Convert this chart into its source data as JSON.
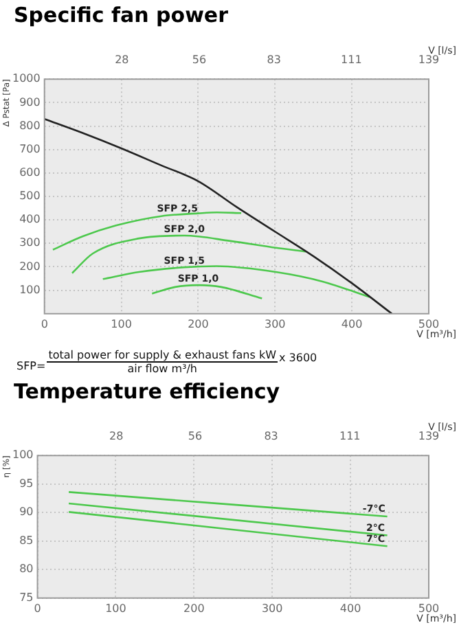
{
  "chart_data": [
    {
      "type": "line",
      "title": "Specific fan power",
      "xlabel": "V [m³/h]",
      "x2label": "V [l/s]",
      "ylabel": "Δ Pstat [Pa]",
      "xlim": [
        0,
        500
      ],
      "xticks": [
        0,
        100,
        200,
        300,
        400,
        500
      ],
      "x2lim": [
        0,
        139
      ],
      "x2ticks": [
        28,
        56,
        83,
        111,
        139
      ],
      "ylim": [
        0,
        1000
      ],
      "yticks": [
        100,
        200,
        300,
        400,
        500,
        600,
        700,
        800,
        900,
        1000
      ],
      "grid": true,
      "legend": false,
      "marker": "none",
      "line_style": "solid",
      "series": [
        {
          "color": "#222222",
          "x": [
            0,
            50,
            100,
            150,
            200,
            250,
            300,
            350,
            400,
            452
          ],
          "values": [
            830,
            770,
            705,
            635,
            565,
            455,
            350,
            245,
            130,
            0
          ]
        },
        {
          "color": "#4cc84c",
          "x": [
            11,
            50,
            93,
            152,
            200,
            224,
            256
          ],
          "values": [
            273,
            330,
            376,
            416,
            428,
            432,
            429
          ]
        },
        {
          "color": "#4cc84c",
          "x": [
            36,
            63,
            123,
            182,
            242,
            301,
            340
          ],
          "values": [
            173,
            257,
            321,
            333,
            310,
            281,
            265
          ]
        },
        {
          "color": "#4cc84c",
          "x": [
            76,
            123,
            182,
            224,
            301,
            361,
            423
          ],
          "values": [
            148,
            178,
            198,
            203,
            178,
            138,
            71
          ]
        },
        {
          "color": "#4cc84c",
          "x": [
            140,
            170,
            200,
            230,
            283
          ],
          "values": [
            86,
            114,
            122,
            114,
            65
          ]
        }
      ],
      "annotations": [
        {
          "text": "SFP 2,5",
          "x": 173,
          "y": 421
        },
        {
          "text": "SFP 2,0",
          "x": 182,
          "y": 333
        },
        {
          "text": "SFP 1,5",
          "x": 182,
          "y": 198
        },
        {
          "text": "SFP 1,0",
          "x": 200,
          "y": 122
        },
        "SFP=",
        "total power for supply & exhaust fans kW",
        "air flow m³/h",
        "x 3600"
      ]
    },
    {
      "type": "line",
      "title": "Temperature efficiency",
      "xlabel": "V [m³/h]",
      "x2label": "V [l/s]",
      "ylabel": "η [%]",
      "xlim": [
        0,
        500
      ],
      "xticks": [
        0,
        100,
        200,
        300,
        400,
        500
      ],
      "x2lim": [
        0,
        139
      ],
      "x2ticks": [
        28,
        56,
        83,
        111,
        139
      ],
      "ylim": [
        75,
        100
      ],
      "yticks": [
        75,
        80,
        85,
        90,
        95,
        100
      ],
      "grid": true,
      "legend": false,
      "marker": "none",
      "line_style": "solid",
      "series": [
        {
          "color": "#4cc84c",
          "x": [
            40,
            447
          ],
          "values": [
            93.6,
            89.3
          ]
        },
        {
          "color": "#4cc84c",
          "x": [
            40,
            447
          ],
          "values": [
            91.6,
            86.0
          ]
        },
        {
          "color": "#4cc84c",
          "x": [
            40,
            447
          ],
          "values": [
            90.1,
            84.1
          ]
        }
      ],
      "annotations": [
        {
          "text": "-7°C",
          "x": 430,
          "y": 89.5
        },
        {
          "text": "2°C",
          "x": 432,
          "y": 86.2
        },
        {
          "text": "7°C",
          "x": 432,
          "y": 84.3
        }
      ]
    }
  ]
}
